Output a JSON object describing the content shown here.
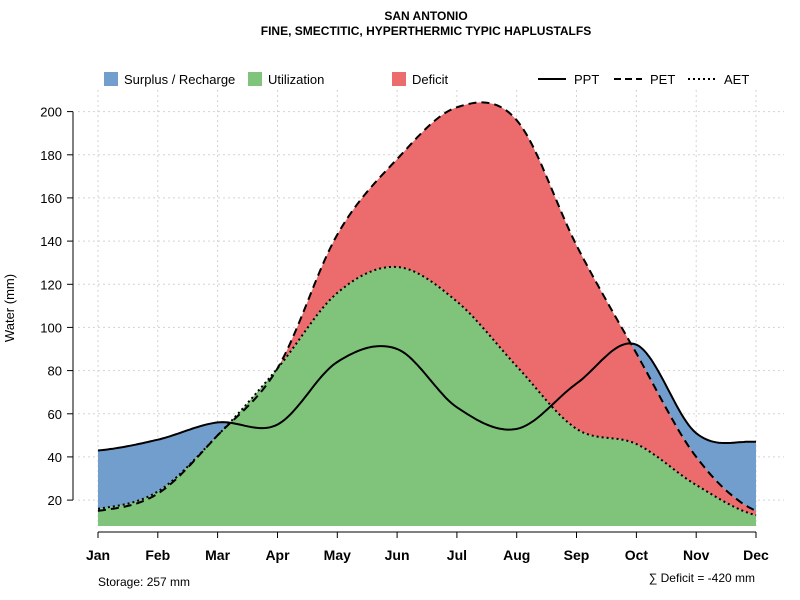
{
  "chart_data": {
    "type": "area",
    "title": "SAN ANTONIO",
    "subtitle": "FINE, SMECTITIC, HYPERTHERMIC TYPIC HAPLUSTALFS",
    "xlabel": "",
    "ylabel": "Water (mm)",
    "ylim": [
      8,
      210
    ],
    "yticks": [
      20,
      40,
      60,
      80,
      100,
      120,
      140,
      160,
      180,
      200
    ],
    "categories": [
      "Jan",
      "Feb",
      "Mar",
      "Apr",
      "May",
      "Jun",
      "Jul",
      "Aug",
      "Sep",
      "Oct",
      "Nov",
      "Dec"
    ],
    "series": [
      {
        "name": "PPT",
        "line": "solid",
        "values": [
          43,
          48,
          56,
          55,
          84,
          90,
          63,
          53,
          74,
          92,
          51,
          47
        ]
      },
      {
        "name": "PET",
        "line": "dashed",
        "values": [
          15,
          23,
          50,
          81,
          143,
          178,
          202,
          196,
          138,
          88,
          40,
          15
        ]
      },
      {
        "name": "AET",
        "line": "dotted",
        "values": [
          16,
          24,
          50,
          81,
          116,
          128,
          112,
          82,
          53,
          46,
          27,
          13
        ]
      }
    ],
    "areas": [
      {
        "name": "Surplus / Recharge",
        "color": "#729ECE"
      },
      {
        "name": "Utilization",
        "color": "#7FC47A"
      },
      {
        "name": "Deficit",
        "color": "#EC6B6D"
      }
    ],
    "legend_position": "top",
    "grid": true,
    "annotations": {
      "storage": "Storage: 257 mm",
      "deficit": "∑ Deficit = -420 mm"
    }
  }
}
